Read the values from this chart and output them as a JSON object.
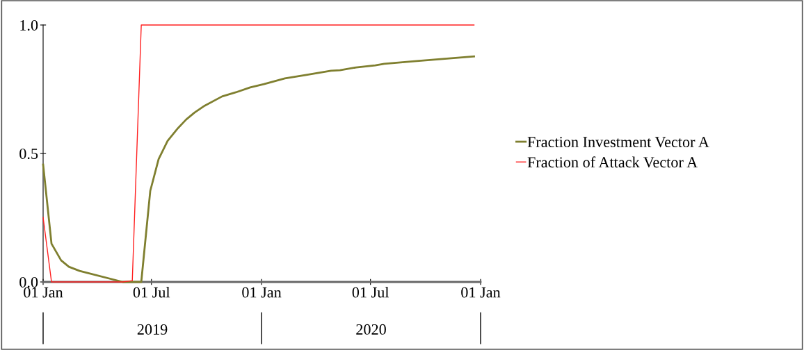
{
  "chart_data": {
    "type": "line",
    "xlim": [
      "2019-01-01",
      "2021-01-01"
    ],
    "xticks": [
      {
        "value": "2019-01-01",
        "label": "01 Jan"
      },
      {
        "value": "2019-07-01",
        "label": "01 Jul"
      },
      {
        "value": "2020-01-01",
        "label": "01 Jan"
      },
      {
        "value": "2020-07-01",
        "label": "01 Jul"
      },
      {
        "value": "2021-01-01",
        "label": "01 Jan"
      }
    ],
    "ylim": [
      0,
      1
    ],
    "yticks": [
      {
        "value": 0,
        "label": "0.0"
      },
      {
        "value": 0.5,
        "label": "0.5"
      },
      {
        "value": 1,
        "label": "1.0"
      }
    ],
    "annotations": [
      "2019",
      "2020"
    ],
    "legend": "right",
    "grid": false,
    "series": [
      {
        "name": "Fraction Investment Vector A",
        "color": "#7f7f2f",
        "x": [
          "2019-01-01",
          "2019-01-15",
          "2019-01-31",
          "2019-02-13",
          "2019-03-03",
          "2019-05-14",
          "2019-06-14",
          "2019-06-29",
          "2019-07-13",
          "2019-07-28",
          "2019-08-13",
          "2019-08-28",
          "2019-09-11",
          "2019-09-28",
          "2019-10-27",
          "2019-11-19",
          "2019-12-13",
          "2020-01-05",
          "2020-02-09",
          "2020-03-14",
          "2020-04-26",
          "2020-05-11",
          "2020-06-07",
          "2020-07-09",
          "2020-07-24",
          "2020-09-13",
          "2020-12-21"
        ],
        "values": [
          0.457,
          0.149,
          0.084,
          0.059,
          0.043,
          0.0,
          0.0,
          0.354,
          0.478,
          0.549,
          0.595,
          0.632,
          0.659,
          0.686,
          0.722,
          0.738,
          0.757,
          0.77,
          0.792,
          0.805,
          0.822,
          0.824,
          0.835,
          0.843,
          0.849,
          0.859,
          0.878
        ]
      },
      {
        "name": "Fraction of Attack Vector A",
        "color": "#ff2020",
        "x": [
          "2019-01-01",
          "2019-01-15",
          "2019-05-14",
          "2019-05-30",
          "2019-06-14",
          "2020-12-21"
        ],
        "values": [
          0.251,
          0.0,
          0.0,
          0.005,
          1.0,
          1.0
        ]
      }
    ]
  }
}
